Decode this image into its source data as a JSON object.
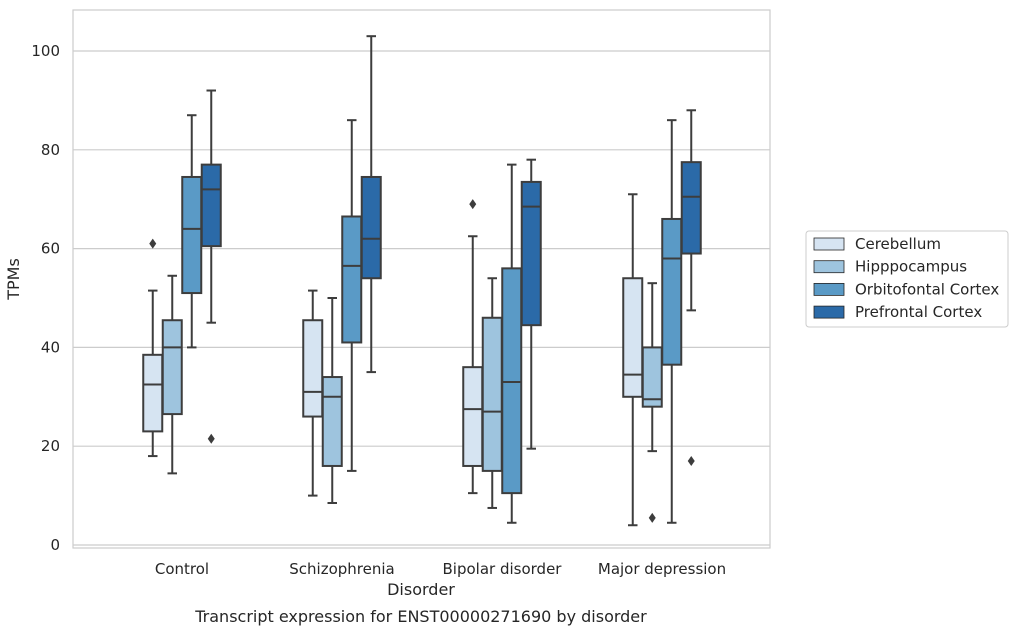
{
  "caption": "Transcript expression for ENST00000271690 by disorder",
  "chart_data": {
    "type": "box",
    "xlabel": "Disorder",
    "ylabel": "TPMs",
    "ylim": [
      0,
      108
    ],
    "yticks": [
      0,
      20,
      40,
      60,
      80,
      100
    ],
    "grid": "horizontal",
    "legend_position": "right",
    "categories": [
      "Control",
      "Schizophrenia",
      "Bipolar disorder",
      "Major depression"
    ],
    "series": [
      {
        "name": "Cerebellum",
        "color": "#d6e4f2",
        "boxes": [
          {
            "whislo": 18,
            "q1": 23,
            "med": 32.5,
            "q3": 38.5,
            "whishi": 51.5,
            "fliers": [
              61
            ]
          },
          {
            "whislo": 10,
            "q1": 26,
            "med": 31,
            "q3": 45.5,
            "whishi": 51.5,
            "fliers": []
          },
          {
            "whislo": 10.5,
            "q1": 16,
            "med": 27.5,
            "q3": 36,
            "whishi": 62.5,
            "fliers": [
              69
            ]
          },
          {
            "whislo": 4,
            "q1": 30,
            "med": 34.5,
            "q3": 54,
            "whishi": 71,
            "fliers": []
          }
        ]
      },
      {
        "name": "Hipppocampus",
        "color": "#9ec4de",
        "boxes": [
          {
            "whislo": 14.5,
            "q1": 26.5,
            "med": 40,
            "q3": 45.5,
            "whishi": 54.5,
            "fliers": []
          },
          {
            "whislo": 8.5,
            "q1": 16,
            "med": 30,
            "q3": 34,
            "whishi": 50,
            "fliers": []
          },
          {
            "whislo": 7.5,
            "q1": 15,
            "med": 27,
            "q3": 46,
            "whishi": 54,
            "fliers": []
          },
          {
            "whislo": 19,
            "q1": 28,
            "med": 29.5,
            "q3": 40,
            "whishi": 53,
            "fliers": [
              5.5
            ]
          }
        ]
      },
      {
        "name": "Orbitofontal Cortex",
        "color": "#5a9ac6",
        "boxes": [
          {
            "whislo": 40,
            "q1": 51,
            "med": 64,
            "q3": 74.5,
            "whishi": 87,
            "fliers": []
          },
          {
            "whislo": 15,
            "q1": 41,
            "med": 56.5,
            "q3": 66.5,
            "whishi": 86,
            "fliers": []
          },
          {
            "whislo": 4.5,
            "q1": 10.5,
            "med": 33,
            "q3": 56,
            "whishi": 77,
            "fliers": []
          },
          {
            "whislo": 4.5,
            "q1": 36.5,
            "med": 58,
            "q3": 66,
            "whishi": 86,
            "fliers": []
          }
        ]
      },
      {
        "name": "Prefrontal Cortex",
        "color": "#2b6aa8",
        "boxes": [
          {
            "whislo": 45,
            "q1": 60.5,
            "med": 72,
            "q3": 77,
            "whishi": 92,
            "fliers": [
              21.5
            ]
          },
          {
            "whislo": 35,
            "q1": 54,
            "med": 62,
            "q3": 74.5,
            "whishi": 103,
            "fliers": []
          },
          {
            "whislo": 19.5,
            "q1": 44.5,
            "med": 68.5,
            "q3": 73.5,
            "whishi": 78,
            "fliers": []
          },
          {
            "whislo": 47.5,
            "q1": 59,
            "med": 70.5,
            "q3": 77.5,
            "whishi": 88,
            "fliers": [
              17
            ]
          }
        ]
      }
    ]
  }
}
